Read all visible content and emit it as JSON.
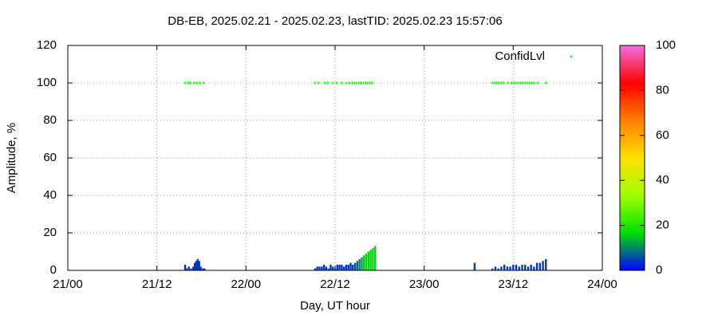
{
  "chart_data": {
    "type": "impulse",
    "title": "DB-EB, 2025.02.21 - 2025.02.23, lastTID: 2025.02.23 15:57:06",
    "x_label": "Day, UT hour",
    "y_label": "Amplitude, %",
    "xlim": [
      0,
      72
    ],
    "xticks": [
      {
        "value": 0,
        "label": "21/00"
      },
      {
        "value": 12,
        "label": "21/12"
      },
      {
        "value": 24,
        "label": "22/00"
      },
      {
        "value": 36,
        "label": "22/12"
      },
      {
        "value": 48,
        "label": "23/00"
      },
      {
        "value": 60,
        "label": "23/12"
      },
      {
        "value": 72,
        "label": "24/00"
      }
    ],
    "ylim": [
      0,
      120
    ],
    "yticks": [
      0,
      20,
      40,
      60,
      80,
      100,
      120
    ],
    "grid": true,
    "cblim": [
      0,
      100
    ],
    "cbticks": [
      0,
      20,
      40,
      60,
      80,
      100
    ],
    "palette": [
      "#0000ff",
      "#00e000",
      "#a0ff00",
      "#ffe000",
      "#ff8000",
      "#ff0000",
      "#f070e0"
    ],
    "series": [
      {
        "name": "Amplitude",
        "x": [
          15.8,
          16.0,
          16.3,
          16.6,
          16.9,
          17.1,
          17.3,
          17.5,
          17.7,
          17.9,
          18.2,
          18.4,
          33.3,
          33.6,
          33.9,
          34.2,
          34.5,
          34.8,
          35.1,
          35.4,
          35.7,
          36.0,
          36.3,
          36.6,
          36.9,
          37.2,
          37.5,
          37.8,
          38.1,
          38.4,
          38.7,
          39.0,
          39.3,
          39.6,
          39.9,
          40.2,
          40.5,
          40.8,
          41.1,
          41.4,
          54.8,
          57.2,
          57.6,
          58.0,
          58.4,
          58.8,
          59.2,
          59.6,
          60.0,
          60.4,
          60.8,
          61.2,
          61.6,
          62.0,
          62.4,
          62.8,
          63.2,
          63.6,
          64.0,
          64.4
        ],
        "values": [
          3,
          1,
          2,
          1,
          2,
          4,
          5,
          6,
          5,
          2,
          1,
          1,
          1,
          2,
          2,
          2,
          3,
          2,
          1,
          3,
          2,
          1,
          3,
          3,
          3,
          2,
          3,
          3,
          4,
          3,
          4,
          5,
          6,
          7,
          8,
          9,
          10,
          11,
          12,
          13,
          4,
          1,
          2,
          1,
          2,
          3,
          2,
          2,
          3,
          3,
          2,
          3,
          3,
          2,
          3,
          2,
          4,
          4,
          5,
          6
        ],
        "color_values": [
          4,
          4,
          4,
          4,
          4,
          4,
          4,
          4,
          4,
          4,
          4,
          4,
          4,
          4,
          4,
          4,
          4,
          4,
          4,
          4,
          4,
          4,
          4,
          4,
          4,
          4,
          4,
          4,
          4,
          4,
          6,
          8,
          10,
          12,
          14,
          16,
          16,
          16,
          16,
          16,
          4,
          4,
          4,
          4,
          4,
          4,
          4,
          4,
          4,
          4,
          4,
          4,
          4,
          4,
          4,
          4,
          4,
          4,
          4,
          4
        ]
      },
      {
        "name": "ConfidLvl",
        "color": "#00ff00",
        "x": [
          15.8,
          16.2,
          16.5,
          17.0,
          17.4,
          17.8,
          18.3,
          33.3,
          33.8,
          34.6,
          35.0,
          35.7,
          36.2,
          36.9,
          37.5,
          37.9,
          38.3,
          38.6,
          38.9,
          39.2,
          39.5,
          39.8,
          40.1,
          40.4,
          40.7,
          41.0,
          57.2,
          57.5,
          57.8,
          58.1,
          58.4,
          58.7,
          59.3,
          59.8,
          60.1,
          60.4,
          60.7,
          61.0,
          61.3,
          61.6,
          61.9,
          62.2,
          62.5,
          62.8,
          63.3,
          64.4
        ],
        "values": [
          100,
          100,
          100,
          100,
          100,
          100,
          100,
          100,
          100,
          100,
          100,
          100,
          100,
          100,
          100,
          100,
          100,
          100,
          100,
          100,
          100,
          100,
          100,
          100,
          100,
          100,
          100,
          100,
          100,
          100,
          100,
          100,
          100,
          100,
          100,
          100,
          100,
          100,
          100,
          100,
          100,
          100,
          100,
          100,
          100,
          100
        ]
      }
    ]
  }
}
